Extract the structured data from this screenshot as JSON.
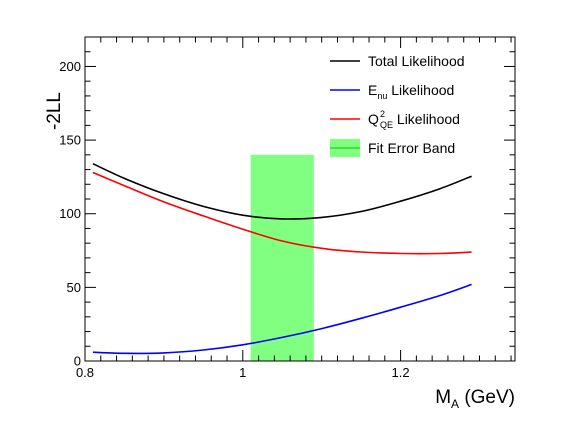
{
  "chart_data": {
    "type": "line",
    "title": "",
    "xlabel": {
      "main": "M",
      "sub": "A",
      "unit": " (GeV)"
    },
    "ylabel": "-2LL",
    "xlim": [
      0.8,
      1.345
    ],
    "ylim": [
      0,
      220
    ],
    "x_ticks": [
      0.8,
      1.0,
      1.2
    ],
    "x_tick_labels": [
      "0.8",
      "1",
      "1.2"
    ],
    "y_ticks": [
      0,
      50,
      100,
      150,
      200
    ],
    "y_tick_labels": [
      "0",
      "50",
      "100",
      "150",
      "200"
    ],
    "grid": false,
    "legend_position": "top-right",
    "series": [
      {
        "name": "Total Likelihood",
        "color": "#000000",
        "x": [
          0.81,
          0.85,
          0.9,
          0.95,
          1.0,
          1.05,
          1.1,
          1.15,
          1.2,
          1.25,
          1.29
        ],
        "y": [
          134,
          124,
          113.5,
          105,
          99,
          96.5,
          97.5,
          101.5,
          108.5,
          117,
          125.5
        ]
      },
      {
        "name": "E_nu Likelihood",
        "color": "#0000ff",
        "x": [
          0.81,
          0.85,
          0.9,
          0.95,
          1.0,
          1.05,
          1.1,
          1.15,
          1.2,
          1.25,
          1.29
        ],
        "y": [
          6,
          5.2,
          5.5,
          7.5,
          11,
          16,
          22,
          29,
          36.5,
          44.5,
          52
        ]
      },
      {
        "name": "Q2_QE Likelihood",
        "color": "#ff0000",
        "x": [
          0.81,
          0.85,
          0.9,
          0.95,
          1.0,
          1.05,
          1.1,
          1.15,
          1.2,
          1.25,
          1.29
        ],
        "y": [
          128,
          119,
          108,
          98.5,
          89.5,
          81.5,
          76.5,
          74,
          73,
          73,
          74
        ]
      }
    ],
    "bands": [
      {
        "name": "Fit Error Band",
        "x": [
          1.01,
          1.09
        ],
        "y": [
          0,
          140
        ],
        "color": "#80ff80",
        "line_color": "#00cc00"
      }
    ],
    "legend": [
      {
        "key": "total",
        "main": "Total Likelihood",
        "style": "line",
        "color": "#000000"
      },
      {
        "key": "enu",
        "main": "E",
        "sub": "nu",
        "rest": " Likelihood",
        "style": "line",
        "color": "#0000ff"
      },
      {
        "key": "q2",
        "main": "Q",
        "sup": "2",
        "sub": "QE",
        "rest": " Likelihood",
        "style": "line",
        "color": "#ff0000"
      },
      {
        "key": "band",
        "main": "Fit Error Band",
        "style": "box",
        "color": "#80ff80",
        "line_color": "#00cc00"
      }
    ]
  }
}
